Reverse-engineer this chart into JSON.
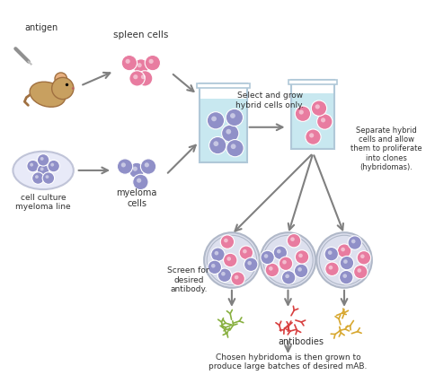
{
  "background_color": "#ffffff",
  "title": "",
  "labels": {
    "antigen": "antigen",
    "spleen_cells": "spleen cells",
    "select_grow": "Select and grow\nhybrid cells only.",
    "cell_culture": "cell culture\nmyeloma line",
    "myeloma_cells": "myeloma\ncells",
    "separate": "Separate hybrid\ncells and allow\nthem to proliferate\ninto clones\n(hybridomas).",
    "screen": "Screen for\ndesired\nantibody.",
    "antibodies": "antibodies",
    "chosen": "Chosen hybridoma is then grown to\nproduce large batches of desired mAB."
  },
  "colors": {
    "pink_cell": "#e87ca0",
    "purple_cell": "#9090c8",
    "light_blue": "#c8e8f0",
    "beaker_outline": "#b0c8d8",
    "arrow": "#808080",
    "text": "#303030",
    "petri_outline": "#b0b8c8",
    "petri_fill": "#d8dce8",
    "antibody_green": "#88b040",
    "antibody_red": "#d84040",
    "antibody_yellow": "#d8a830",
    "mouse_body": "#c8a060",
    "dish_fill": "#e8eaf0"
  }
}
